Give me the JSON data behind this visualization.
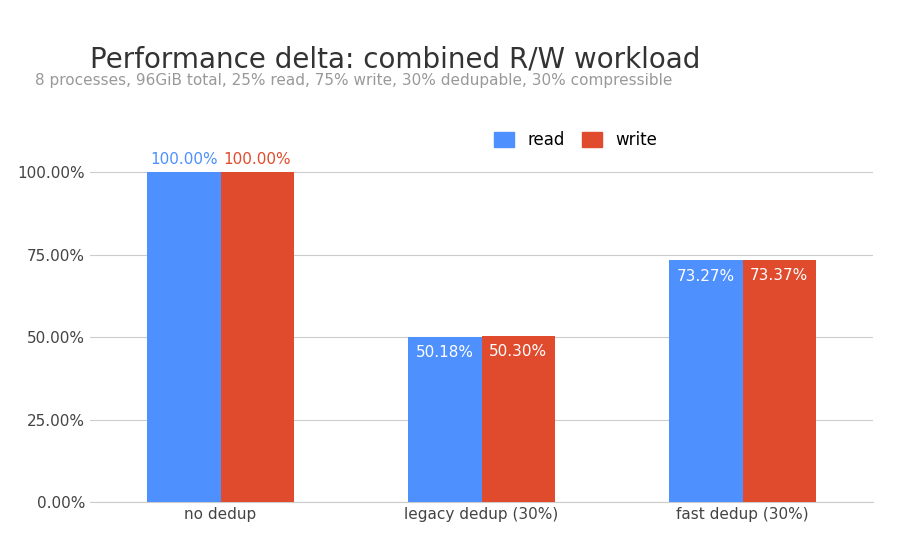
{
  "title": "Performance delta: combined R/W workload",
  "subtitle": "8 processes, 96GiB total, 25% read, 75% write, 30% dedupable, 30% compressible",
  "categories": [
    "no dedup",
    "legacy dedup (30%)",
    "fast dedup (30%)"
  ],
  "read_values": [
    100.0,
    50.18,
    73.27
  ],
  "write_values": [
    100.0,
    50.3,
    73.37
  ],
  "read_color": "#4d90fe",
  "write_color": "#e04b2e",
  "bar_labels_read": [
    "100.00%",
    "50.18%",
    "73.27%"
  ],
  "bar_labels_write": [
    "100.00%",
    "50.30%",
    "73.37%"
  ],
  "ylim": [
    0,
    115
  ],
  "yticks": [
    0,
    25,
    50,
    75,
    100
  ],
  "yticklabels": [
    "0.00%",
    "25.00%",
    "50.00%",
    "75.00%",
    "100.00%"
  ],
  "background_color": "#ffffff",
  "grid_color": "#cccccc",
  "title_fontsize": 20,
  "subtitle_fontsize": 11,
  "subtitle_color": "#999999",
  "tick_label_fontsize": 11,
  "bar_label_fontsize": 11,
  "legend_fontsize": 12,
  "bar_width": 0.28,
  "figsize": [
    9.0,
    5.58
  ],
  "dpi": 100
}
